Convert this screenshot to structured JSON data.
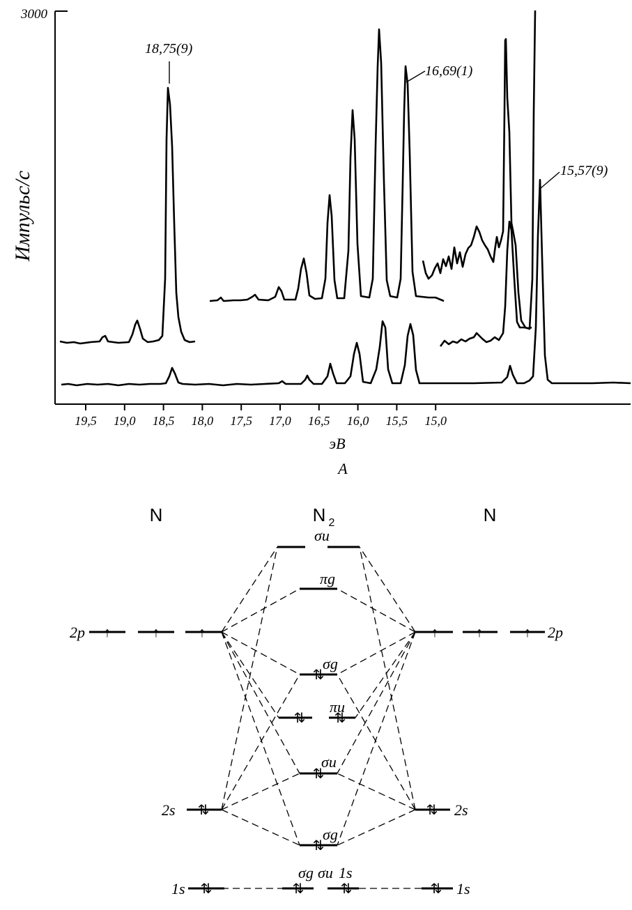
{
  "spectrum": {
    "y_axis_label": "Импульс/с",
    "y_tick_label": "3000",
    "x_axis_label": "эВ",
    "panel_label": "A",
    "x_ticks": [
      "19,5",
      "19,0",
      "18,5",
      "18,0",
      "17,5",
      "17,0",
      "16,5",
      "16,0",
      "15,5",
      "15,0"
    ],
    "peak_annotations": [
      "18,75(9)",
      "16,69(1)",
      "15,57(9)"
    ]
  },
  "mo_diagram": {
    "left_atom": "N",
    "center_molecule": "N",
    "center_subscript": "2",
    "right_atom": "N",
    "ao_labels": {
      "p": "2p",
      "s": "2s",
      "core": "1s"
    },
    "mo_labels": {
      "sigma_u_star": "σu",
      "pi_g": "πg",
      "sigma_g_p": "σg",
      "pi_u": "πu",
      "sigma_u_s": "σu",
      "sigma_g_s": "σg",
      "core_sigma_g": "σg",
      "core_sigma_u": "σu",
      "core_1s": "1s"
    },
    "glyphs": {
      "up": "↑",
      "pair": "⇅"
    }
  },
  "chart_data": {
    "type": "line",
    "xlabel": "эВ",
    "ylabel": "Импульс/с",
    "x_reversed": true,
    "xlim": [
      19.8,
      14.8
    ],
    "ylim": [
      0,
      3000
    ],
    "annotations": [
      {
        "label": "18,75(9)",
        "x": 18.75
      },
      {
        "label": "16,69(1)",
        "x": 16.69
      },
      {
        "label": "15,57(9)",
        "x": 15.58
      }
    ],
    "series": [
      {
        "x": [
          19.8,
          18.9,
          18.78,
          18.75,
          18.72,
          18.6,
          17.65,
          17.4,
          17.2,
          16.95,
          16.71,
          15.86,
          15.6,
          15.58,
          15.55,
          14.8
        ],
        "y": [
          60,
          70,
          130,
          170,
          130,
          80,
          110,
          200,
          310,
          520,
          510,
          160,
          1200,
          1660,
          1100,
          70
        ]
      }
    ]
  }
}
